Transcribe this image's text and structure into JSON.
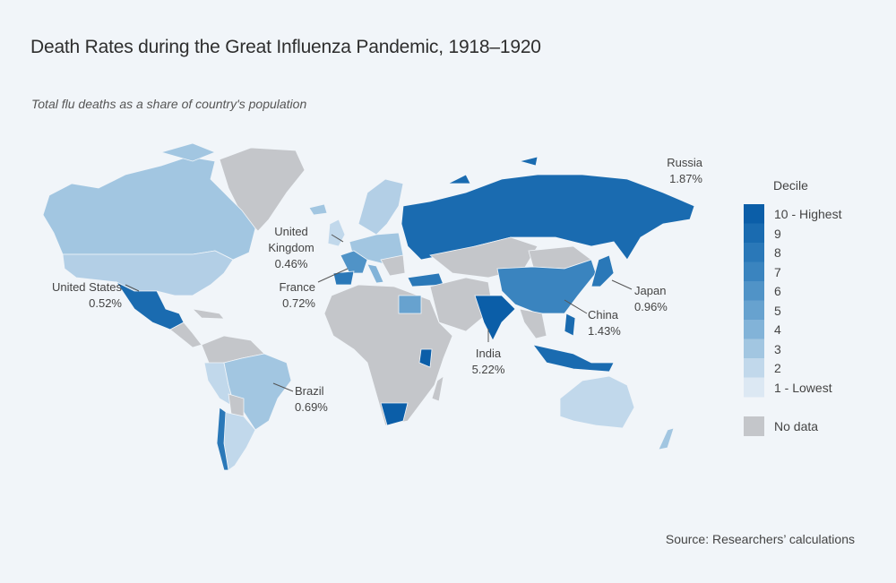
{
  "title": "Death Rates during the Great Influenza Pandemic, 1918–1920",
  "subtitle": "Total flu deaths as a share of country's population",
  "source": "Source: Researchers’ calculations",
  "legend": {
    "title": "Decile",
    "items": [
      {
        "label": "10 - Highest",
        "color": "#0b5ea8"
      },
      {
        "label": "9",
        "color": "#1a6bb0"
      },
      {
        "label": "8",
        "color": "#2a78b8"
      },
      {
        "label": "7",
        "color": "#3a84bf"
      },
      {
        "label": "6",
        "color": "#5093c7"
      },
      {
        "label": "5",
        "color": "#67a2cf"
      },
      {
        "label": "4",
        "color": "#82b3d8"
      },
      {
        "label": "3",
        "color": "#a2c6e1"
      },
      {
        "label": "2",
        "color": "#c1d8eb"
      },
      {
        "label": "1 - Lowest",
        "color": "#dce8f3"
      }
    ],
    "no_data": {
      "label": "No data",
      "color": "#c4c6ca"
    }
  },
  "annotations": [
    {
      "country": "Russia",
      "value": "1.87%"
    },
    {
      "country": "United Kingdom",
      "line1": "United",
      "line2": "Kingdom",
      "value": "0.46%"
    },
    {
      "country": "United States",
      "value": "0.52%"
    },
    {
      "country": "France",
      "value": "0.72%"
    },
    {
      "country": "Japan",
      "value": "0.96%"
    },
    {
      "country": "China",
      "value": "1.43%"
    },
    {
      "country": "India",
      "value": "5.22%"
    },
    {
      "country": "Brazil",
      "value": "0.69%"
    }
  ]
}
